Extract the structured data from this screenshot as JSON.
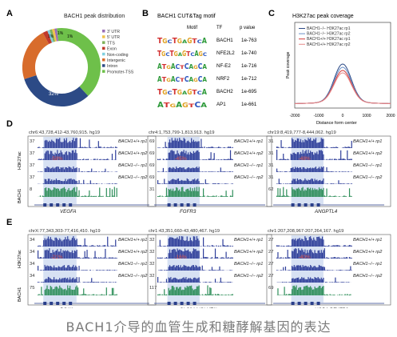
{
  "panelA": {
    "letter": "A",
    "title": "BACH1 peak distribution",
    "legend": [
      "3' UTR",
      "5' UTR",
      "TTS",
      "Exon",
      "Non-coding",
      "Intergenic",
      "Intron",
      "Promoter-TSS"
    ],
    "colors": [
      "#9b6fb5",
      "#f0c24a",
      "#7fb25a",
      "#c0392b",
      "#7fd0e0",
      "#d86c2c",
      "#2c4a86",
      "#6ec04a"
    ],
    "slice_labels": [
      "1%",
      "1%",
      "1%",
      "32%"
    ]
  },
  "panelB": {
    "letter": "B",
    "title": "BACH1 CUT&Tag motif",
    "headers": [
      "Motif",
      "TF",
      "p value"
    ],
    "rows": [
      {
        "tf": "BACH1",
        "p": "1e-763"
      },
      {
        "tf": "NFE2L2",
        "p": "1e-740"
      },
      {
        "tf": "NF-E2",
        "p": "1e-716"
      },
      {
        "tf": "NRF2",
        "p": "1e-712"
      },
      {
        "tf": "BACH2",
        "p": "1e-695"
      },
      {
        "tf": "AP1",
        "p": "1e-661"
      }
    ],
    "motif_letters": [
      "TGCTGAGTCA",
      "TGCTGAGTCAGC",
      "ATGACTCAGCA",
      "ATGACTCAGCA",
      "TGCTGAGTCA",
      "ATGAGTCA"
    ]
  },
  "panelC": {
    "letter": "C",
    "title": "H3K27ac peak coverage",
    "ylabel": "Peak coverage",
    "xlabel": "Distance form center",
    "legend": [
      "BACH1−/− H3K27ac rp1",
      "BACH1−/− H3K27ac rp2",
      "BACH1+/+ H3K27ac rp1",
      "BACH1+/+ H3K27ac rp2"
    ],
    "legend_colors": [
      "#2c4a86",
      "#6a8fc8",
      "#d23a3a",
      "#e88a8a"
    ]
  },
  "panelD": {
    "letter": "D",
    "row_labels": [
      "H3K27ac",
      "BACH1"
    ],
    "tracks": [
      {
        "loc": "chr6:43,728,412-43,760,915. hg19",
        "scales": [
          "37",
          "37",
          "37",
          "37",
          "8"
        ],
        "pct": "-58%",
        "gene": "VEGFA"
      },
      {
        "loc": "chr4:1,753,799-1,813,913. hg19",
        "scales": [
          "69",
          "69",
          "69",
          "69",
          "31"
        ],
        "pct": "-45%",
        "gene": "FGFR3"
      },
      {
        "loc": "chr19:8,419,777-8,444,062. hg19",
        "scales": [
          "31",
          "31",
          "31",
          "31",
          "62"
        ],
        "pct": "-48%",
        "gene": "ANGPTL4"
      }
    ],
    "sample_labels": [
      "BACH1+/+ rp1",
      "BACH1+/+ rp2",
      "BACH1−/− rp1",
      "BACH1−/− rp2"
    ]
  },
  "panelE": {
    "letter": "E",
    "row_labels": [
      "H3K27ac",
      "BACH1"
    ],
    "tracks": [
      {
        "loc": "chrX:77,343,303-77,416,410. hg19",
        "scales": [
          "34",
          "34",
          "34",
          "34",
          "75"
        ],
        "pct": "-21%",
        "gene": "PGK1"
      },
      {
        "loc": "chr1:43,351,660-43,480,467. hg19",
        "scales": [
          "32",
          "32",
          "32",
          "32",
          "117"
        ],
        "pct": "-16%",
        "gene": "SLC2A1(GLUT1)"
      },
      {
        "loc": "chr1:207,208,967-207,264,167. hg19",
        "scales": [
          "27",
          "27",
          "27",
          "27",
          "69"
        ],
        "pct": "-40%",
        "gene": "YOD1 PFKFB2"
      }
    ],
    "sample_labels": [
      "BACH1+/+ rp1",
      "BACH1+/+ rp2",
      "BACH1−/− rp1",
      "BACH1−/− rp2"
    ]
  },
  "colors": {
    "h3k27ac": "#2f3f9a",
    "bach1": "#2f8f5a",
    "highlight": "#c9d7ef",
    "percent": "#e0524a"
  },
  "caption": "BACH1介导的血管生成和糖酵解基因的表达"
}
